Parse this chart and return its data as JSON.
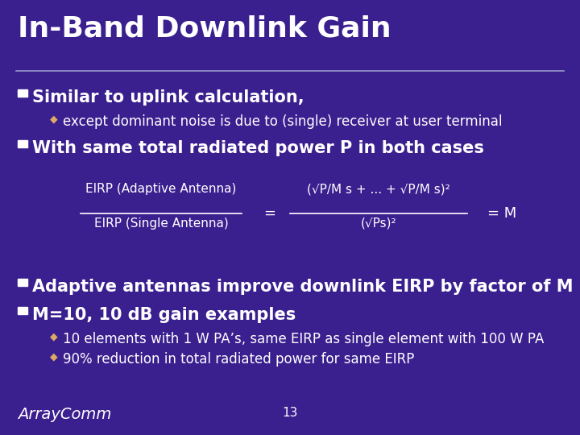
{
  "bg_color": "#3a1f8f",
  "title": "In-Band Downlink Gain",
  "title_color": "#ffffff",
  "title_fontsize": 26,
  "line_color": "#9999cc",
  "bullet1": "Similar to uplink calculation,",
  "bullet1_fontsize": 15,
  "sub_bullet1": "except dominant noise is due to (single) receiver at user terminal",
  "sub_bullet1_fontsize": 12,
  "bullet2": "With same total radiated power P in both cases",
  "bullet2_fontsize": 15,
  "formula_num": "EIRP (Adaptive Antenna)",
  "formula_den": "EIRP (Single Antenna)",
  "formula_num2": "(√P/M s + ... + √P/M s)²",
  "formula_den2": "(√Ps)²",
  "formula_fontsize": 11,
  "text_color": "#ffffff",
  "bullet3": "Adaptive antennas improve downlink EIRP by factor of M",
  "bullet3_fontsize": 15,
  "bullet4": "M=10, 10 dB gain examples",
  "bullet4_fontsize": 15,
  "sub_bullet2": "10 elements with 1 W PA’s, same EIRP as single element with 100 W PA",
  "sub_bullet2_fontsize": 12,
  "sub_bullet3": "90% reduction in total radiated power for same EIRP",
  "sub_bullet3_fontsize": 12,
  "footer_logo": "ArrayComm",
  "footer_logo_fontsize": 14,
  "footer_page": "13",
  "footer_page_fontsize": 11,
  "diamond_color": "#ddaa66"
}
